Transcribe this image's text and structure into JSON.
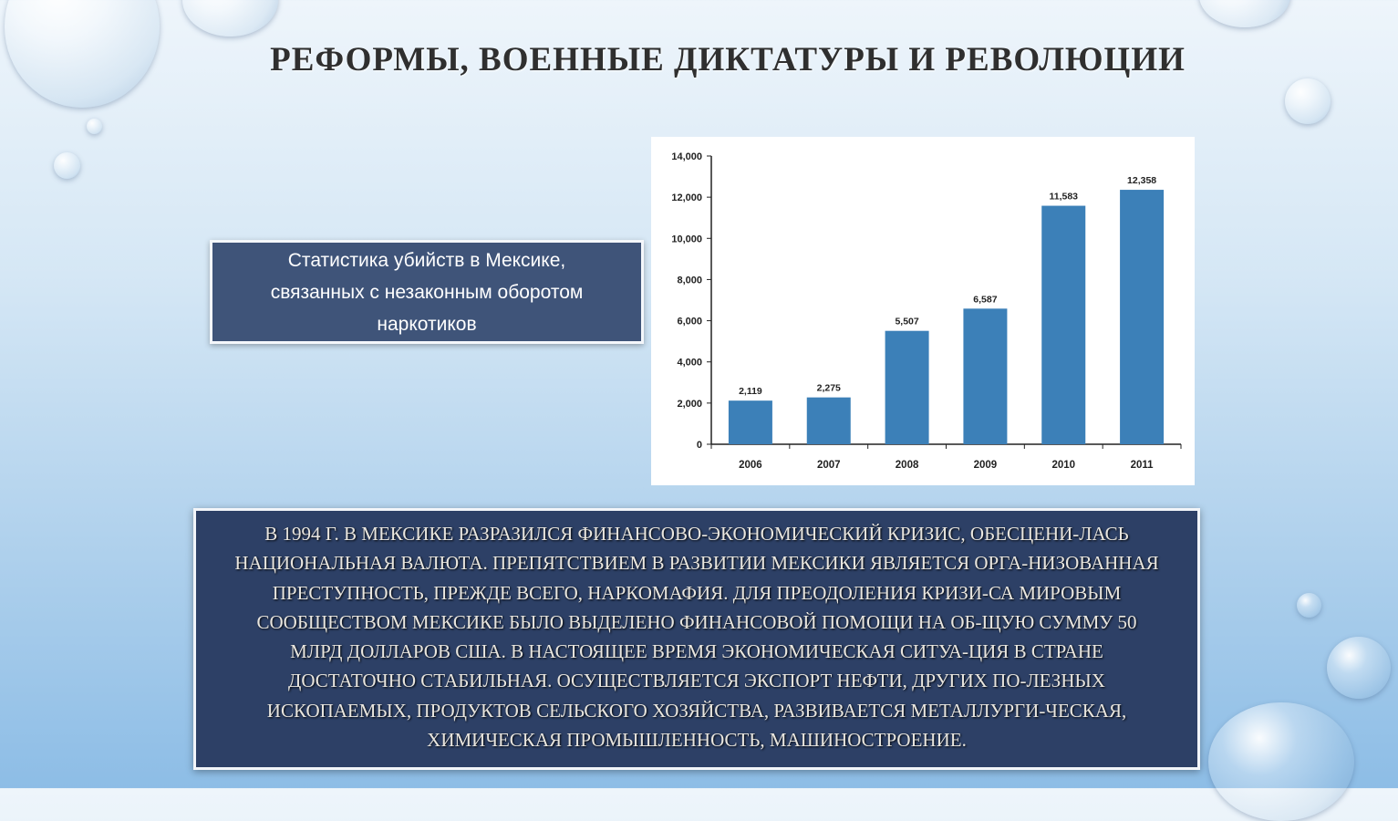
{
  "slide": {
    "title": "РЕФОРМЫ, ВОЕННЫЕ ДИКТАТУРЫ И РЕВОЛЮЦИИ",
    "caption_lines": [
      "Статистика убийств в Мексике,",
      "связанных с незаконным оборотом",
      "наркотиков"
    ],
    "body_lines": [
      "В 1994 Г. В МЕКСИКЕ РАЗРАЗИЛСЯ  ФИНАНСОВО-ЭКОНОМИЧЕСКИЙ КРИЗИС, ОБЕСЦЕНИ-ЛАСЬ",
      "НАЦИОНАЛЬНАЯ ВАЛЮТА. ПРЕПЯТСТВИЕМ В РАЗВИТИИ МЕКСИКИ ЯВЛЯЕТСЯ ОРГА-НИЗОВАННАЯ",
      "ПРЕСТУПНОСТЬ, ПРЕЖДЕ ВСЕГО, НАРКОМАФИЯ.  ДЛЯ ПРЕОДОЛЕНИЯ КРИЗИ-СА МИРОВЫМ",
      "СООБЩЕСТВОМ МЕКСИКЕ БЫЛО ВЫДЕЛЕНО ФИНАНСОВОЙ ПОМОЩИ НА ОБ-ЩУЮ СУММУ 50",
      "МЛРД ДОЛЛАРОВ США. В НАСТОЯЩЕЕ ВРЕМЯ ЭКОНОМИЧЕСКАЯ СИТУА-ЦИЯ В СТРАНЕ",
      "ДОСТАТОЧНО СТАБИЛЬНАЯ. ОСУЩЕСТВЛЯЕТСЯ ЭКСПОРТ НЕФТИ, ДРУГИХ ПО-ЛЕЗНЫХ",
      "ИСКОПАЕМЫХ, ПРОДУКТОВ СЕЛЬСКОГО ХОЗЯЙСТВА, РАЗВИВАЕТСЯ МЕТАЛЛУРГИ-ЧЕСКАЯ,",
      "ХИМИЧЕСКАЯ ПРОМЫШЛЕННОСТЬ, МАШИНОСТРОЕНИЕ."
    ]
  },
  "chart_data": {
    "type": "bar",
    "categories": [
      "2006",
      "2007",
      "2008",
      "2009",
      "2010",
      "2011"
    ],
    "values": [
      2119,
      2275,
      5507,
      6587,
      11583,
      12358
    ],
    "data_labels": [
      "2,119",
      "2,275",
      "5,507",
      "6,587",
      "11,583",
      "12,358"
    ],
    "ylim": [
      0,
      14000
    ],
    "yticks": [
      "0",
      "2,000",
      "4,000",
      "6,000",
      "8,000",
      "10,000",
      "12,000",
      "14,000"
    ],
    "grid": false,
    "bar_color": "#3c80b8"
  }
}
